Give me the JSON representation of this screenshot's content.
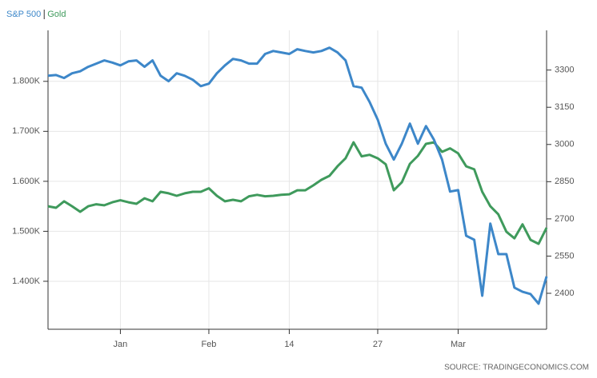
{
  "chart_data": {
    "type": "line",
    "legend": "top-left",
    "source": "SOURCE: TRADINGECONOMICS.COM",
    "categories": [
      null,
      null,
      null,
      null,
      null,
      null,
      null,
      null,
      null,
      "Jan",
      null,
      null,
      null,
      null,
      null,
      null,
      null,
      null,
      null,
      null,
      "Feb",
      null,
      null,
      null,
      null,
      null,
      null,
      null,
      null,
      null,
      "14",
      null,
      null,
      null,
      null,
      null,
      null,
      null,
      null,
      null,
      null,
      "27",
      null,
      null,
      null,
      null,
      null,
      null,
      null,
      null,
      null,
      "Mar",
      null,
      null,
      null,
      null,
      null,
      null,
      null,
      null,
      null,
      null,
      null
    ],
    "series": [
      {
        "name": "S&P 500",
        "color": "#3d87c9",
        "axis": "y2",
        "values": [
          3277,
          3280,
          3268,
          3287,
          3295,
          3313,
          3326,
          3339,
          3330,
          3319,
          3335,
          3339,
          3313,
          3339,
          3277,
          3255,
          3287,
          3277,
          3261,
          3235,
          3245,
          3287,
          3319,
          3345,
          3339,
          3326,
          3326,
          3365,
          3377,
          3371,
          3365,
          3384,
          3377,
          3371,
          3377,
          3390,
          3371,
          3339,
          3235,
          3229,
          3171,
          3100,
          3003,
          2939,
          3003,
          3084,
          3003,
          3074,
          3019,
          2939,
          2810,
          2816,
          2632,
          2616,
          2390,
          2681,
          2558,
          2558,
          2423,
          2406,
          2397,
          2358,
          2468
        ]
      },
      {
        "name": "Gold",
        "color": "#3f9a5c",
        "values": [
          1550,
          1547,
          1560,
          1550,
          1539,
          1550,
          1554,
          1552,
          1558,
          1562,
          1558,
          1555,
          1566,
          1560,
          1579,
          1576,
          1571,
          1576,
          1579,
          1579,
          1586,
          1571,
          1560,
          1563,
          1560,
          1570,
          1573,
          1570,
          1571,
          1573,
          1574,
          1582,
          1582,
          1592,
          1603,
          1611,
          1630,
          1646,
          1678,
          1650,
          1653,
          1646,
          1634,
          1582,
          1598,
          1635,
          1651,
          1675,
          1678,
          1659,
          1666,
          1656,
          1630,
          1624,
          1579,
          1550,
          1534,
          1499,
          1486,
          1514,
          1483,
          1475,
          1507
        ]
      }
    ],
    "ylim": [
      1304,
      1902
    ],
    "yticks": [
      {
        "value": 1400,
        "label": "1.400K"
      },
      {
        "value": 1500,
        "label": "1.500K"
      },
      {
        "value": 1600,
        "label": "1.600K"
      },
      {
        "value": 1700,
        "label": "1.700K"
      },
      {
        "value": 1800,
        "label": "1.800K"
      }
    ],
    "y2lim": [
      2255,
      3460
    ],
    "y2ticks": [
      2400,
      2550,
      2700,
      2850,
      3000,
      3150,
      3300
    ],
    "grid": true
  }
}
